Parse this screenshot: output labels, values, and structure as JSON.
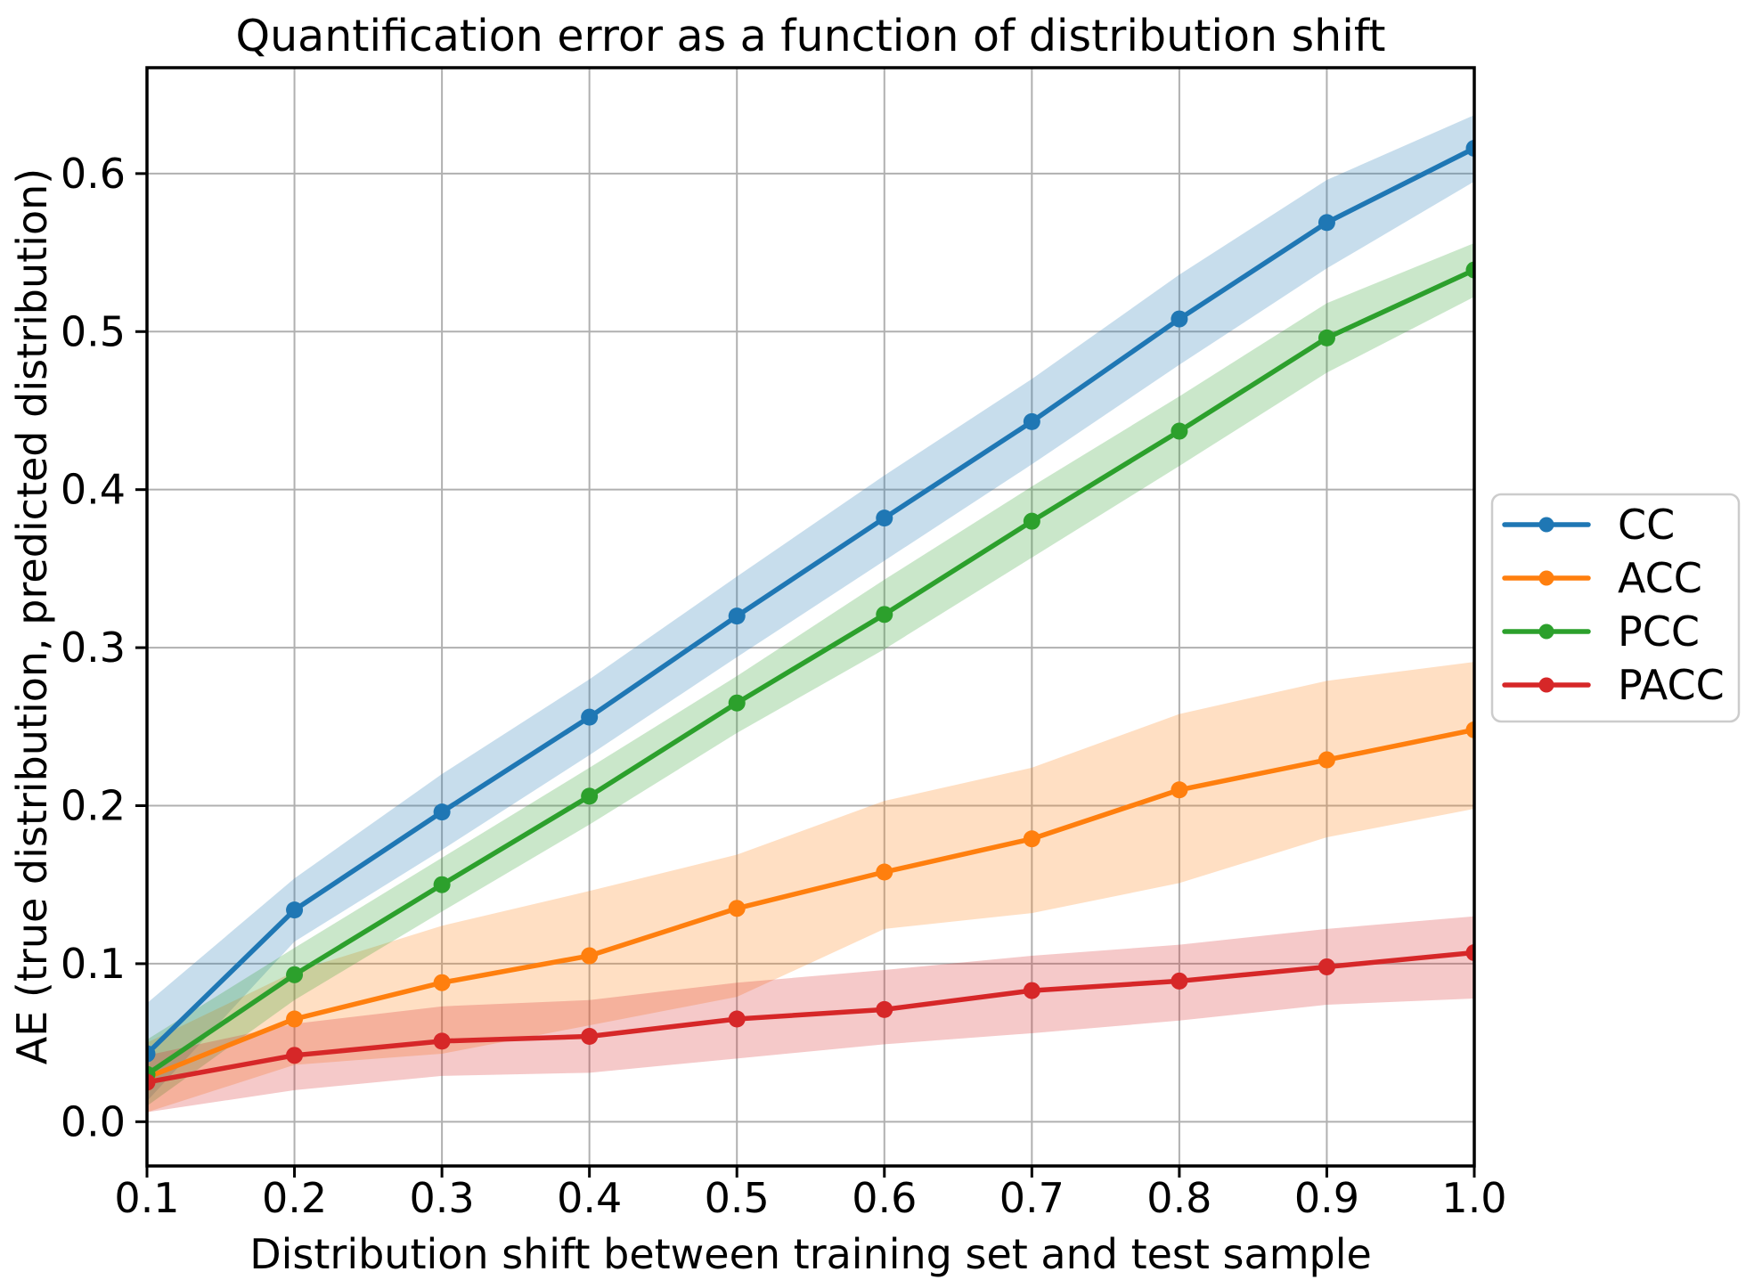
{
  "figure": {
    "background": "#ffffff"
  },
  "chart_data": {
    "type": "line",
    "title": "Quantification error as a function of distribution shift",
    "xlabel": "Distribution shift between training set and test sample",
    "ylabel": "AE (true distribution, predicted distribution)",
    "x": [
      0.1,
      0.2,
      0.3,
      0.4,
      0.5,
      0.6,
      0.7,
      0.8,
      0.9,
      1.0
    ],
    "xlim": [
      0.1,
      1.0
    ],
    "ylim": [
      -0.028,
      0.667
    ],
    "xticks": {
      "values": [
        0.1,
        0.2,
        0.3,
        0.4,
        0.5,
        0.6,
        0.7,
        0.8,
        0.9,
        1.0
      ],
      "labels": [
        "0.1",
        "0.2",
        "0.3",
        "0.4",
        "0.5",
        "0.6",
        "0.7",
        "0.8",
        "0.9",
        "1.0"
      ]
    },
    "yticks": {
      "values": [
        0.0,
        0.1,
        0.2,
        0.3,
        0.4,
        0.5,
        0.6
      ],
      "labels": [
        "0.0",
        "0.1",
        "0.2",
        "0.3",
        "0.4",
        "0.5",
        "0.6"
      ]
    },
    "grid": true,
    "grid_color": "#b0b0b0",
    "spine_color": "#000000",
    "band_alpha": 0.25,
    "marker": "circle",
    "legend": {
      "position": "outside-right",
      "border_color": "#cccccc",
      "background": "#ffffff"
    },
    "series": [
      {
        "name": "CC",
        "color": "#1f77b4",
        "values": [
          0.043,
          0.134,
          0.196,
          0.256,
          0.32,
          0.382,
          0.443,
          0.508,
          0.569,
          0.616
        ],
        "band_upper": [
          0.075,
          0.154,
          0.22,
          0.28,
          0.345,
          0.409,
          0.47,
          0.536,
          0.596,
          0.637
        ],
        "band_lower": [
          0.013,
          0.114,
          0.172,
          0.232,
          0.294,
          0.355,
          0.416,
          0.479,
          0.54,
          0.595
        ]
      },
      {
        "name": "ACC",
        "color": "#ff7f0e",
        "values": [
          0.028,
          0.065,
          0.088,
          0.105,
          0.135,
          0.158,
          0.179,
          0.21,
          0.229,
          0.248
        ],
        "band_upper": [
          0.05,
          0.095,
          0.124,
          0.146,
          0.169,
          0.203,
          0.224,
          0.258,
          0.279,
          0.291
        ],
        "band_lower": [
          0.006,
          0.036,
          0.043,
          0.061,
          0.079,
          0.122,
          0.132,
          0.151,
          0.18,
          0.198
        ]
      },
      {
        "name": "PCC",
        "color": "#2ca02c",
        "values": [
          0.03,
          0.093,
          0.15,
          0.206,
          0.265,
          0.321,
          0.38,
          0.437,
          0.496,
          0.539
        ],
        "band_upper": [
          0.052,
          0.11,
          0.167,
          0.224,
          0.282,
          0.343,
          0.402,
          0.459,
          0.518,
          0.556
        ],
        "band_lower": [
          0.01,
          0.077,
          0.133,
          0.188,
          0.246,
          0.299,
          0.357,
          0.415,
          0.474,
          0.522
        ]
      },
      {
        "name": "PACC",
        "color": "#d62728",
        "values": [
          0.025,
          0.042,
          0.051,
          0.054,
          0.065,
          0.071,
          0.083,
          0.089,
          0.098,
          0.107
        ],
        "band_upper": [
          0.042,
          0.062,
          0.073,
          0.077,
          0.088,
          0.096,
          0.105,
          0.112,
          0.122,
          0.13
        ],
        "band_lower": [
          0.006,
          0.02,
          0.029,
          0.031,
          0.04,
          0.049,
          0.056,
          0.064,
          0.074,
          0.078
        ]
      }
    ]
  }
}
